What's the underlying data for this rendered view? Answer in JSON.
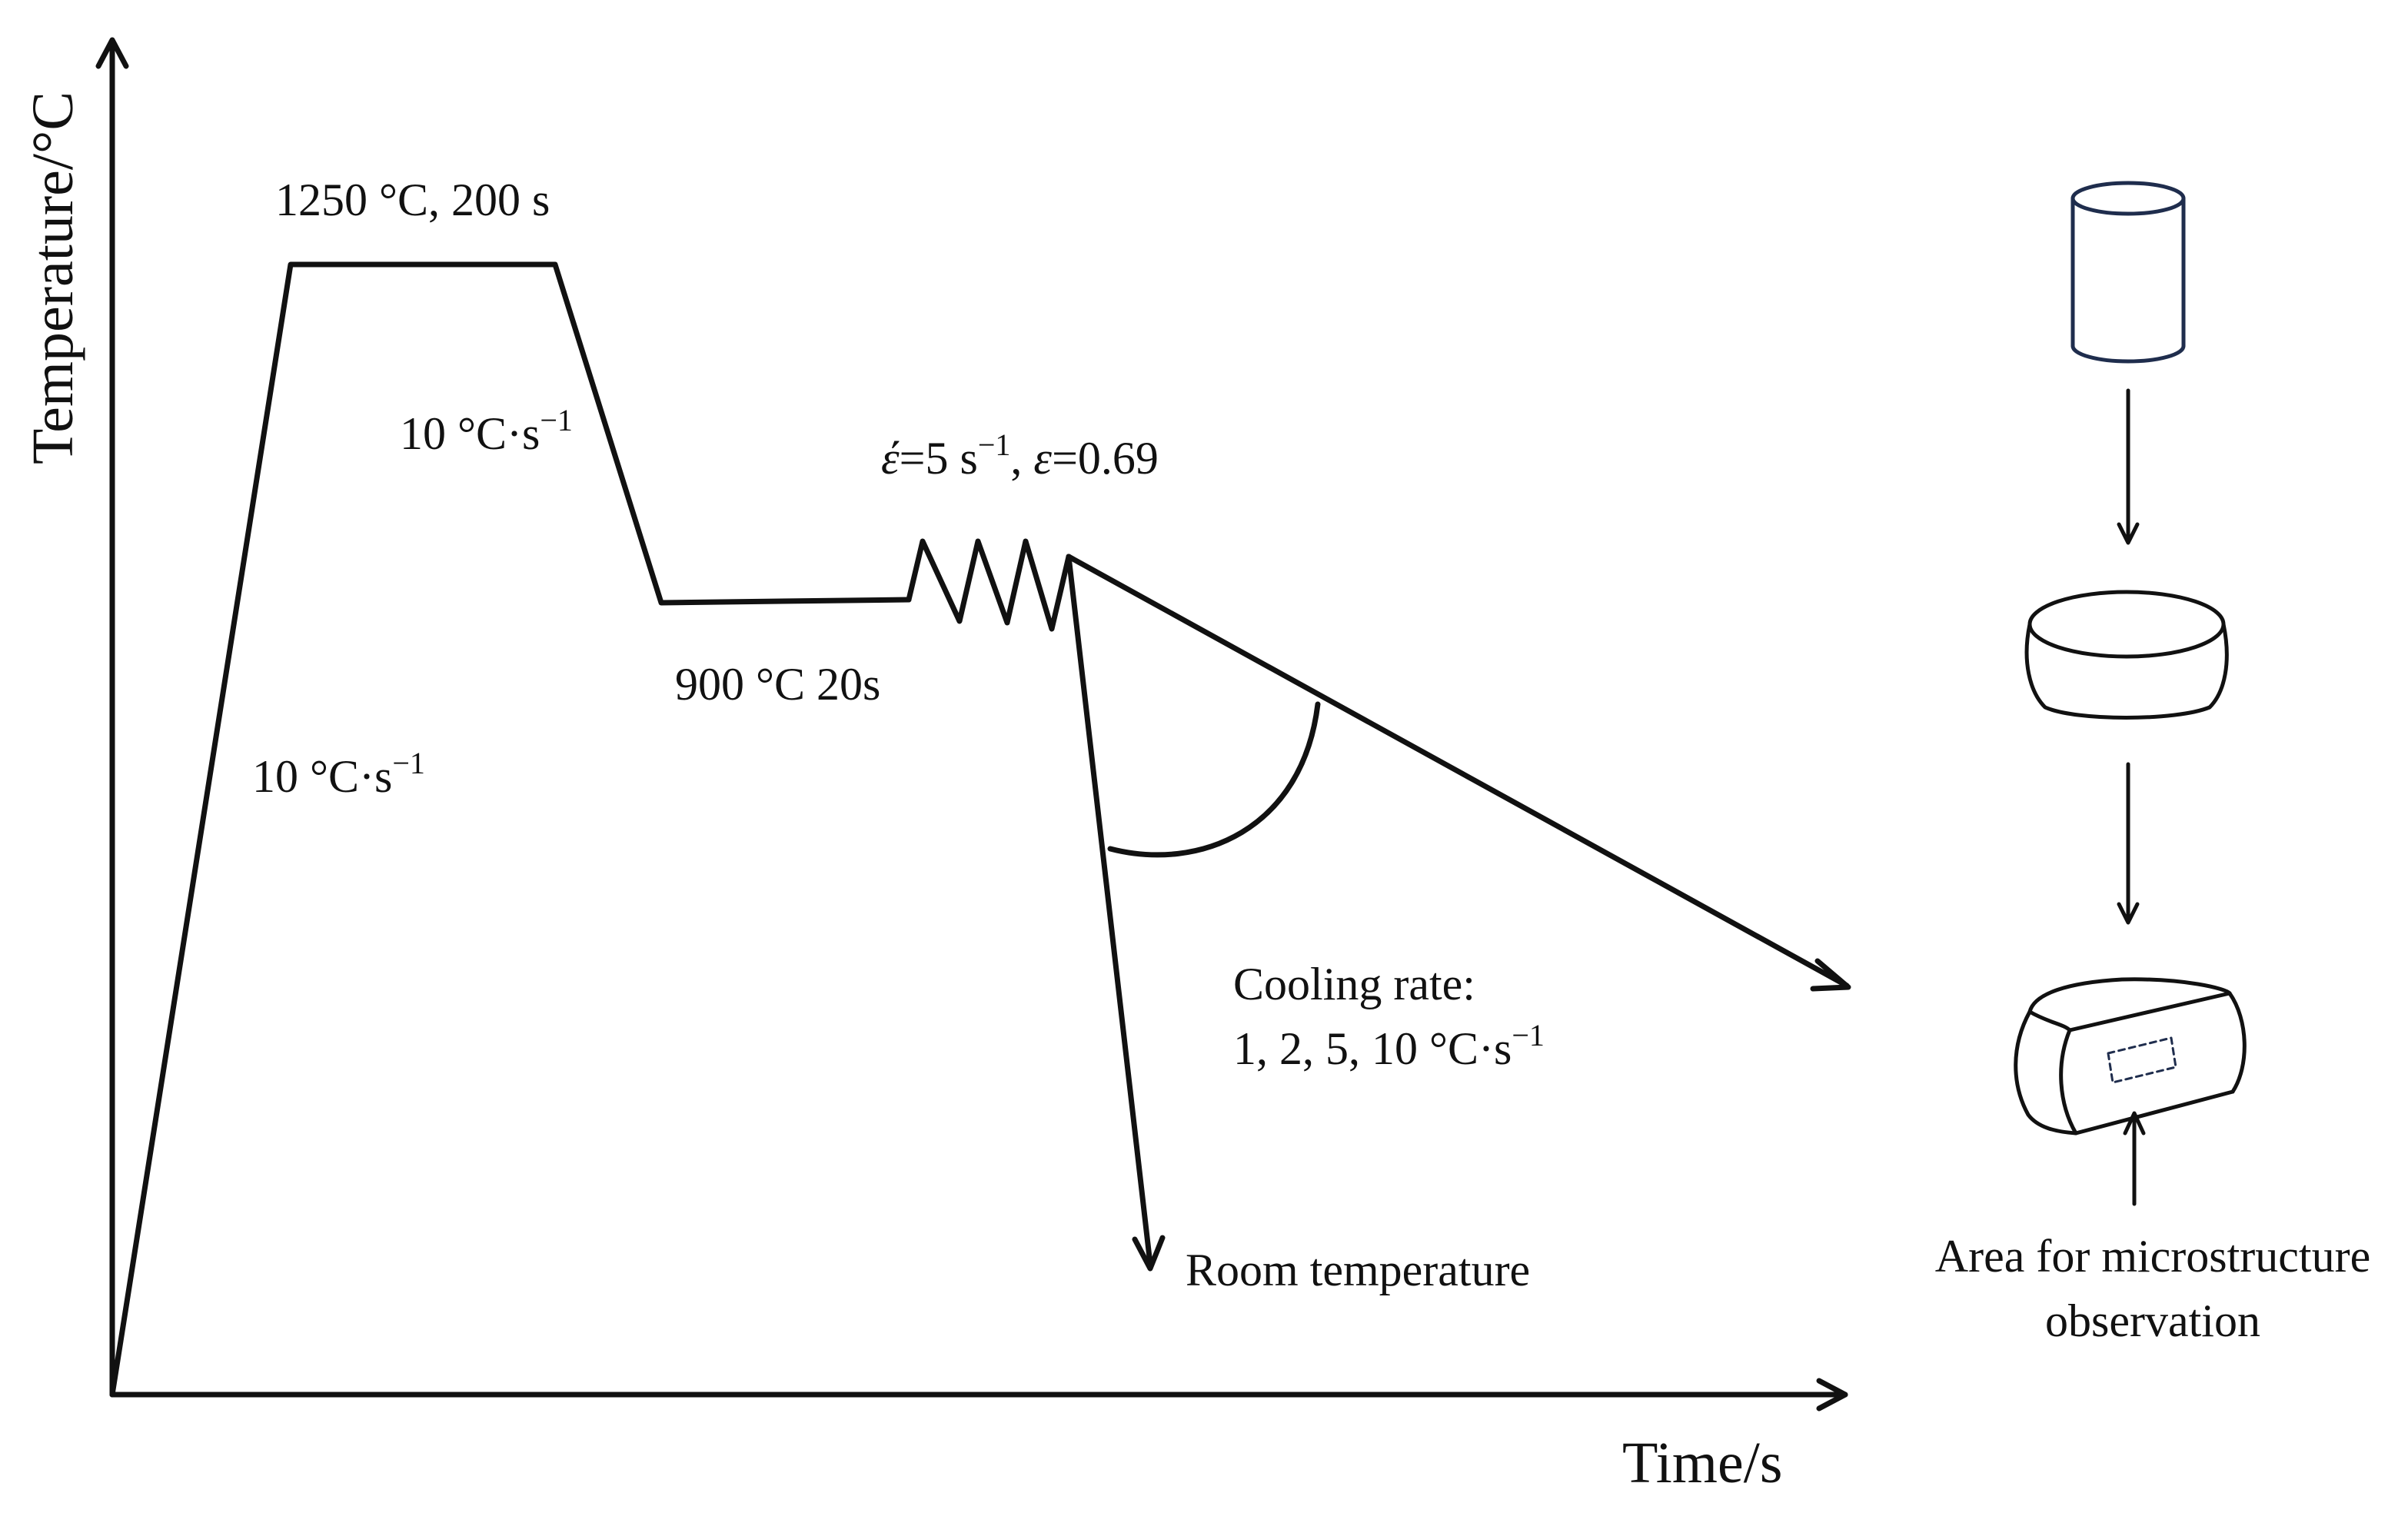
{
  "axes": {
    "y_label": "Temperature/°C",
    "x_label": "Time/s"
  },
  "annotations": {
    "hold_high": "1250 °C, 200 s",
    "cool_rate_1": {
      "base": "10 °C·s",
      "exp": "−1"
    },
    "heat_rate": {
      "base": "10 °C·s",
      "exp": "−1"
    },
    "hold_low": "900 °C 20s",
    "deformation": {
      "strain_rate_symbol": "έ",
      "strain_rate_value": "=5 s",
      "strain_rate_exp": "−1",
      "sep": ", ",
      "strain_symbol": "ε",
      "strain_value": "=0.69"
    },
    "cooling_rate_title": "Cooling rate:",
    "cooling_rate_values": {
      "base": "1, 2, 5, 10 °C·s",
      "exp": "−1"
    },
    "room_temp": "Room temperature"
  },
  "specimen": {
    "observation_label_line1": "Area for microstructure",
    "observation_label_line2": "observation",
    "outline_color": "#1f2d4d"
  }
}
